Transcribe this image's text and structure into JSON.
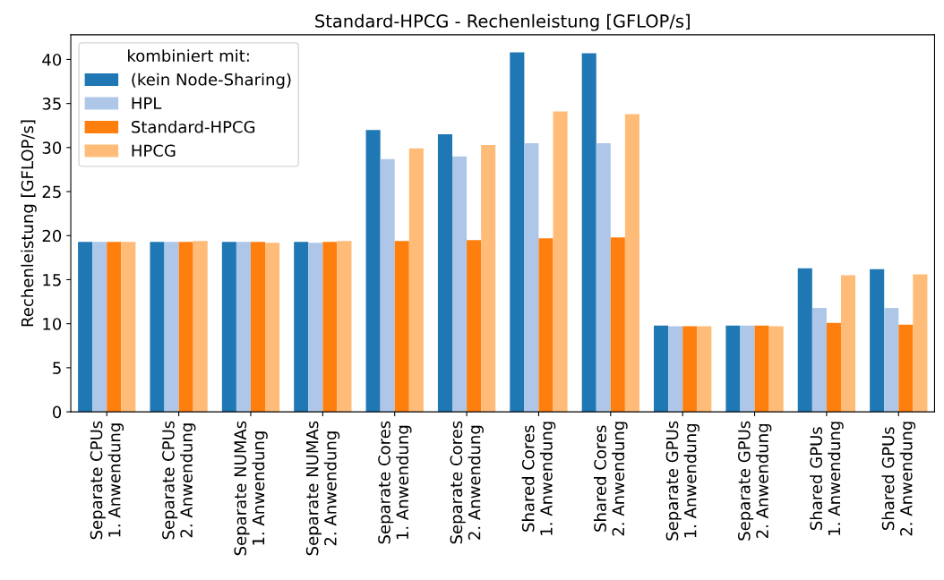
{
  "chart_data": {
    "type": "bar",
    "title": "Standard-HPCG - Rechenleistung [GFLOP/s]",
    "ylabel": "Rechenleistung [GFLOP/s]",
    "legend_title": "kombiniert mit:",
    "categories": [
      "Separate CPUs\n1. Anwendung",
      "Separate CPUs\n2. Anwendung",
      "Separate NUMAs\n1. Anwendung",
      "Separate NUMAs\n2. Anwendung",
      "Separate Cores\n1. Anwendung",
      "Separate Cores\n2. Anwendung",
      "Shared Cores\n1. Anwendung",
      "Shared Cores\n2. Anwendung",
      "Separate GPUs\n1. Anwendung",
      "Separate GPUs\n2. Anwendung",
      "Shared GPUs\n1. Anwendung",
      "Shared GPUs\n2. Anwendung"
    ],
    "series": [
      {
        "name": "(kein Node-Sharing)",
        "color": "#1f77b4",
        "values": [
          19.3,
          19.3,
          19.3,
          19.3,
          32.0,
          31.5,
          40.8,
          40.7,
          9.8,
          9.8,
          16.3,
          16.2
        ]
      },
      {
        "name": "HPL",
        "color": "#aec7e8",
        "values": [
          19.3,
          19.3,
          19.3,
          19.2,
          28.7,
          29.0,
          30.5,
          30.5,
          9.7,
          9.8,
          11.8,
          11.8
        ]
      },
      {
        "name": "Standard-HPCG",
        "color": "#ff7f0e",
        "values": [
          19.3,
          19.3,
          19.3,
          19.3,
          19.4,
          19.5,
          19.7,
          19.8,
          9.7,
          9.8,
          10.1,
          9.9
        ]
      },
      {
        "name": "HPCG",
        "color": "#ffbb78",
        "values": [
          19.3,
          19.4,
          19.2,
          19.4,
          29.9,
          30.3,
          34.1,
          33.8,
          9.7,
          9.7,
          15.5,
          15.6
        ]
      }
    ],
    "ylim": [
      0,
      42.8
    ],
    "yticks": [
      0,
      5,
      10,
      15,
      20,
      25,
      30,
      35,
      40
    ],
    "grid": false,
    "legend": "top left"
  }
}
